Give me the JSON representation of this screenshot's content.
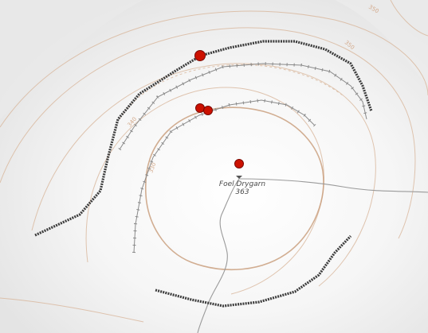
{
  "summit": {
    "name": "Foel Drygarn",
    "elevation": "363"
  },
  "contour_labels": [
    {
      "text": "350"
    },
    {
      "text": "340"
    },
    {
      "text": "330"
    },
    {
      "text": "350"
    }
  ],
  "colors": {
    "contour": "#d9b79c",
    "contour_major": "#caa07f",
    "rampart_ditch": "#3c3c3c",
    "fence_line": "#8a8a8a",
    "path": "#9a9a9a",
    "marker_fill": "#cc1100",
    "marker_stroke": "#7a0800"
  },
  "markers": {
    "count": 4
  }
}
